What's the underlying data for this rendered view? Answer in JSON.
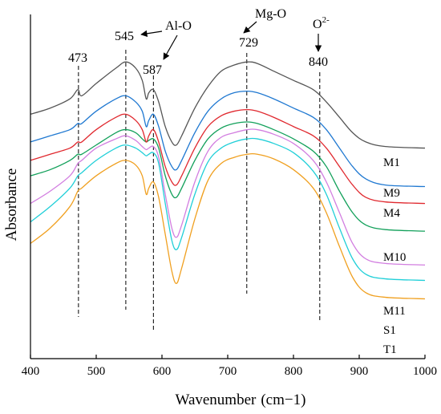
{
  "chart_data": {
    "type": "line",
    "title": "",
    "xlabel": "Wavenumber",
    "xlabel_unit": "(cm−1)",
    "ylabel": "Absorbance",
    "xlim": [
      400,
      1000
    ],
    "x_ticks": [
      400,
      500,
      600,
      700,
      800,
      900,
      1000
    ],
    "y_ticks_shown": false,
    "grid": false,
    "legend": "none (series labelled at right end of each curve)",
    "series": [
      {
        "name": "M1",
        "color": "#555555",
        "points": [
          [
            400,
            0.75
          ],
          [
            430,
            0.77
          ],
          [
            460,
            0.8
          ],
          [
            472,
            0.83
          ],
          [
            478,
            0.81
          ],
          [
            500,
            0.85
          ],
          [
            530,
            0.9
          ],
          [
            545,
            0.92
          ],
          [
            560,
            0.9
          ],
          [
            570,
            0.86
          ],
          [
            576,
            0.8
          ],
          [
            580,
            0.82
          ],
          [
            587,
            0.83
          ],
          [
            595,
            0.79
          ],
          [
            605,
            0.71
          ],
          [
            615,
            0.66
          ],
          [
            622,
            0.65
          ],
          [
            630,
            0.68
          ],
          [
            650,
            0.77
          ],
          [
            670,
            0.84
          ],
          [
            690,
            0.89
          ],
          [
            710,
            0.91
          ],
          [
            730,
            0.92
          ],
          [
            745,
            0.915
          ],
          [
            770,
            0.89
          ],
          [
            800,
            0.86
          ],
          [
            830,
            0.83
          ],
          [
            850,
            0.79
          ],
          [
            870,
            0.74
          ],
          [
            890,
            0.69
          ],
          [
            910,
            0.66
          ],
          [
            940,
            0.645
          ],
          [
            1000,
            0.64
          ]
        ]
      },
      {
        "name": "M9",
        "color": "#1f78d1",
        "points": [
          [
            400,
            0.66
          ],
          [
            430,
            0.68
          ],
          [
            460,
            0.7
          ],
          [
            472,
            0.72
          ],
          [
            478,
            0.72
          ],
          [
            500,
            0.76
          ],
          [
            530,
            0.8
          ],
          [
            545,
            0.81
          ],
          [
            560,
            0.79
          ],
          [
            570,
            0.76
          ],
          [
            576,
            0.71
          ],
          [
            580,
            0.73
          ],
          [
            587,
            0.75
          ],
          [
            595,
            0.71
          ],
          [
            605,
            0.63
          ],
          [
            615,
            0.58
          ],
          [
            622,
            0.57
          ],
          [
            630,
            0.6
          ],
          [
            650,
            0.69
          ],
          [
            670,
            0.76
          ],
          [
            690,
            0.8
          ],
          [
            710,
            0.82
          ],
          [
            730,
            0.825
          ],
          [
            745,
            0.82
          ],
          [
            770,
            0.8
          ],
          [
            800,
            0.77
          ],
          [
            830,
            0.74
          ],
          [
            850,
            0.7
          ],
          [
            870,
            0.64
          ],
          [
            890,
            0.58
          ],
          [
            910,
            0.54
          ],
          [
            940,
            0.52
          ],
          [
            1000,
            0.515
          ]
        ]
      },
      {
        "name": "M4",
        "color": "#e0282e",
        "points": [
          [
            400,
            0.6
          ],
          [
            430,
            0.62
          ],
          [
            460,
            0.64
          ],
          [
            472,
            0.66
          ],
          [
            478,
            0.66
          ],
          [
            500,
            0.7
          ],
          [
            530,
            0.74
          ],
          [
            545,
            0.75
          ],
          [
            560,
            0.73
          ],
          [
            570,
            0.7
          ],
          [
            576,
            0.66
          ],
          [
            580,
            0.68
          ],
          [
            587,
            0.7
          ],
          [
            595,
            0.66
          ],
          [
            605,
            0.58
          ],
          [
            615,
            0.53
          ],
          [
            622,
            0.52
          ],
          [
            630,
            0.55
          ],
          [
            650,
            0.64
          ],
          [
            670,
            0.71
          ],
          [
            690,
            0.745
          ],
          [
            710,
            0.76
          ],
          [
            730,
            0.765
          ],
          [
            745,
            0.76
          ],
          [
            770,
            0.74
          ],
          [
            800,
            0.71
          ],
          [
            830,
            0.68
          ],
          [
            850,
            0.64
          ],
          [
            870,
            0.58
          ],
          [
            890,
            0.52
          ],
          [
            910,
            0.48
          ],
          [
            940,
            0.465
          ],
          [
            1000,
            0.46
          ]
        ]
      },
      {
        "name": "M10",
        "color": "#12a05a",
        "points": [
          [
            400,
            0.55
          ],
          [
            430,
            0.57
          ],
          [
            460,
            0.6
          ],
          [
            472,
            0.62
          ],
          [
            478,
            0.62
          ],
          [
            500,
            0.65
          ],
          [
            530,
            0.69
          ],
          [
            545,
            0.7
          ],
          [
            560,
            0.69
          ],
          [
            570,
            0.67
          ],
          [
            576,
            0.66
          ],
          [
            580,
            0.665
          ],
          [
            587,
            0.67
          ],
          [
            595,
            0.64
          ],
          [
            605,
            0.55
          ],
          [
            615,
            0.49
          ],
          [
            622,
            0.48
          ],
          [
            630,
            0.51
          ],
          [
            650,
            0.6
          ],
          [
            670,
            0.67
          ],
          [
            690,
            0.705
          ],
          [
            710,
            0.72
          ],
          [
            730,
            0.725
          ],
          [
            745,
            0.72
          ],
          [
            770,
            0.7
          ],
          [
            800,
            0.67
          ],
          [
            830,
            0.63
          ],
          [
            850,
            0.58
          ],
          [
            870,
            0.5
          ],
          [
            890,
            0.43
          ],
          [
            910,
            0.39
          ],
          [
            940,
            0.375
          ],
          [
            1000,
            0.37
          ]
        ]
      },
      {
        "name": "M11",
        "color": "#d27ee0",
        "points": [
          [
            400,
            0.46
          ],
          [
            430,
            0.5
          ],
          [
            460,
            0.55
          ],
          [
            472,
            0.59
          ],
          [
            478,
            0.6
          ],
          [
            500,
            0.64
          ],
          [
            530,
            0.67
          ],
          [
            545,
            0.68
          ],
          [
            560,
            0.665
          ],
          [
            570,
            0.645
          ],
          [
            576,
            0.635
          ],
          [
            580,
            0.64
          ],
          [
            587,
            0.645
          ],
          [
            595,
            0.61
          ],
          [
            605,
            0.49
          ],
          [
            615,
            0.38
          ],
          [
            622,
            0.35
          ],
          [
            630,
            0.39
          ],
          [
            650,
            0.53
          ],
          [
            670,
            0.63
          ],
          [
            690,
            0.675
          ],
          [
            710,
            0.69
          ],
          [
            730,
            0.7
          ],
          [
            745,
            0.7
          ],
          [
            770,
            0.685
          ],
          [
            800,
            0.655
          ],
          [
            830,
            0.6
          ],
          [
            850,
            0.53
          ],
          [
            870,
            0.43
          ],
          [
            890,
            0.33
          ],
          [
            910,
            0.28
          ],
          [
            940,
            0.265
          ],
          [
            1000,
            0.26
          ]
        ]
      },
      {
        "name": "S1",
        "color": "#20cfd8",
        "points": [
          [
            400,
            0.4
          ],
          [
            430,
            0.45
          ],
          [
            460,
            0.51
          ],
          [
            472,
            0.55
          ],
          [
            478,
            0.56
          ],
          [
            500,
            0.6
          ],
          [
            530,
            0.64
          ],
          [
            545,
            0.65
          ],
          [
            560,
            0.64
          ],
          [
            570,
            0.625
          ],
          [
            576,
            0.615
          ],
          [
            580,
            0.62
          ],
          [
            587,
            0.625
          ],
          [
            595,
            0.59
          ],
          [
            605,
            0.46
          ],
          [
            615,
            0.34
          ],
          [
            622,
            0.31
          ],
          [
            630,
            0.35
          ],
          [
            650,
            0.49
          ],
          [
            670,
            0.595
          ],
          [
            690,
            0.64
          ],
          [
            710,
            0.66
          ],
          [
            730,
            0.67
          ],
          [
            745,
            0.67
          ],
          [
            770,
            0.655
          ],
          [
            800,
            0.625
          ],
          [
            830,
            0.565
          ],
          [
            850,
            0.49
          ],
          [
            870,
            0.38
          ],
          [
            890,
            0.28
          ],
          [
            910,
            0.23
          ],
          [
            940,
            0.215
          ],
          [
            1000,
            0.21
          ]
        ]
      },
      {
        "name": "T1",
        "color": "#f0a020",
        "points": [
          [
            400,
            0.33
          ],
          [
            430,
            0.38
          ],
          [
            460,
            0.45
          ],
          [
            472,
            0.5
          ],
          [
            478,
            0.51
          ],
          [
            500,
            0.55
          ],
          [
            530,
            0.59
          ],
          [
            545,
            0.6
          ],
          [
            560,
            0.585
          ],
          [
            570,
            0.55
          ],
          [
            576,
            0.49
          ],
          [
            580,
            0.51
          ],
          [
            587,
            0.53
          ],
          [
            595,
            0.48
          ],
          [
            605,
            0.36
          ],
          [
            615,
            0.24
          ],
          [
            622,
            0.2
          ],
          [
            630,
            0.25
          ],
          [
            650,
            0.41
          ],
          [
            670,
            0.535
          ],
          [
            690,
            0.59
          ],
          [
            710,
            0.61
          ],
          [
            730,
            0.62
          ],
          [
            745,
            0.62
          ],
          [
            770,
            0.605
          ],
          [
            800,
            0.57
          ],
          [
            830,
            0.51
          ],
          [
            850,
            0.43
          ],
          [
            870,
            0.32
          ],
          [
            890,
            0.22
          ],
          [
            910,
            0.17
          ],
          [
            940,
            0.155
          ],
          [
            1000,
            0.15
          ]
        ]
      }
    ],
    "reference_lines": [
      {
        "x": 473,
        "label": "473"
      },
      {
        "x": 545,
        "label": "545"
      },
      {
        "x": 587,
        "label": "587"
      },
      {
        "x": 729,
        "label": "729"
      },
      {
        "x": 840,
        "label": "840"
      }
    ],
    "annotations": [
      {
        "text": "Al-O"
      },
      {
        "text": "Mg-O"
      },
      {
        "text": "O",
        "sup": "2-"
      }
    ]
  }
}
